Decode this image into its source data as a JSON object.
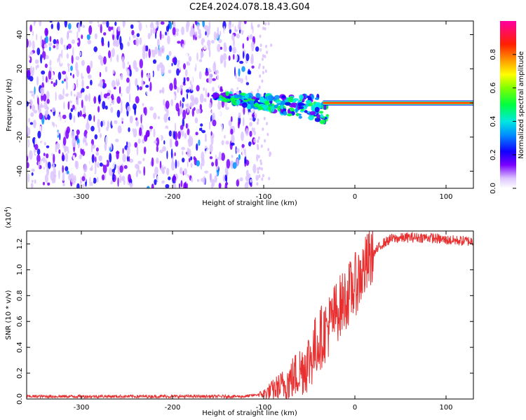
{
  "title": "C2E4.2024.078.18.43.G04",
  "colors": {
    "snr_line": "#e83030",
    "colorbar": [
      "#ffffff",
      "#e0c8ff",
      "#7a00ff",
      "#0000ff",
      "#00c8ff",
      "#00ff00",
      "#ffff00",
      "#ff8000",
      "#ff0000",
      "#ff00aa"
    ]
  },
  "chart_data": [
    {
      "type": "heatmap",
      "title": "C2E4.2024.078.18.43.G04",
      "xlabel": "Height of straight line (km)",
      "ylabel": "Frequency (Hz)",
      "xlim": [
        -360,
        130
      ],
      "ylim": [
        -50,
        48
      ],
      "xticks": [
        -300,
        -200,
        -100,
        0,
        100
      ],
      "yticks": [
        -40,
        -20,
        0,
        20,
        40
      ],
      "colorbar": {
        "label": "Normalized spectral amplitude",
        "range": [
          0.0,
          1.0
        ],
        "ticks": [
          "0.0",
          "0.2",
          "0.4",
          "0.6",
          "0.8"
        ]
      },
      "description_regions": [
        {
          "x_range": [
            -360,
            -107
          ],
          "y_range": [
            -50,
            48
          ],
          "amplitude": 0.15
        },
        {
          "x_range": [
            -155,
            -30
          ],
          "y_range": [
            -18,
            6
          ],
          "amplitude": 0.45
        },
        {
          "x_range": [
            -35,
            130
          ],
          "y_range": [
            -1,
            1
          ],
          "amplitude": 0.95
        }
      ]
    },
    {
      "type": "line",
      "xlabel": "Height of straight line (km)",
      "ylabel": "SNR (10 * v/v)",
      "y_multiplier": "(x10",
      "y_multiplier_exp": "4",
      "y_multiplier_close": ")",
      "xlim": [
        -360,
        130
      ],
      "ylim": [
        0,
        1.3
      ],
      "xticks": [
        -300,
        -200,
        -100,
        0,
        100
      ],
      "yticks": [
        0.0,
        0.2,
        0.4,
        0.6,
        0.8,
        1.0,
        1.2
      ],
      "series": [
        {
          "x": [
            -360,
            -300,
            -200,
            -120,
            -100,
            -80,
            -70,
            -60,
            -50,
            -40,
            -30,
            -20,
            -10,
            0,
            10,
            20,
            30,
            40,
            60,
            80,
            100,
            130
          ],
          "y": [
            0.02,
            0.02,
            0.02,
            0.02,
            0.04,
            0.1,
            0.15,
            0.22,
            0.3,
            0.45,
            0.55,
            0.68,
            0.78,
            0.88,
            1.0,
            1.12,
            1.2,
            1.24,
            1.25,
            1.25,
            1.23,
            1.22
          ]
        }
      ]
    }
  ],
  "plot1": {
    "xticks": [
      "-300",
      "-200",
      "-100",
      "0",
      "100"
    ],
    "yticks": [
      "-40",
      "-20",
      "0",
      "20",
      "40"
    ],
    "cbticks": [
      "0.0",
      "0.2",
      "0.4",
      "0.6",
      "0.8"
    ]
  },
  "plot2": {
    "xticks": [
      "-300",
      "-200",
      "-100",
      "0",
      "100"
    ],
    "yticks": [
      "0.0",
      "0.2",
      "0.4",
      "0.6",
      "0.8",
      "1.0",
      "1.2"
    ]
  }
}
